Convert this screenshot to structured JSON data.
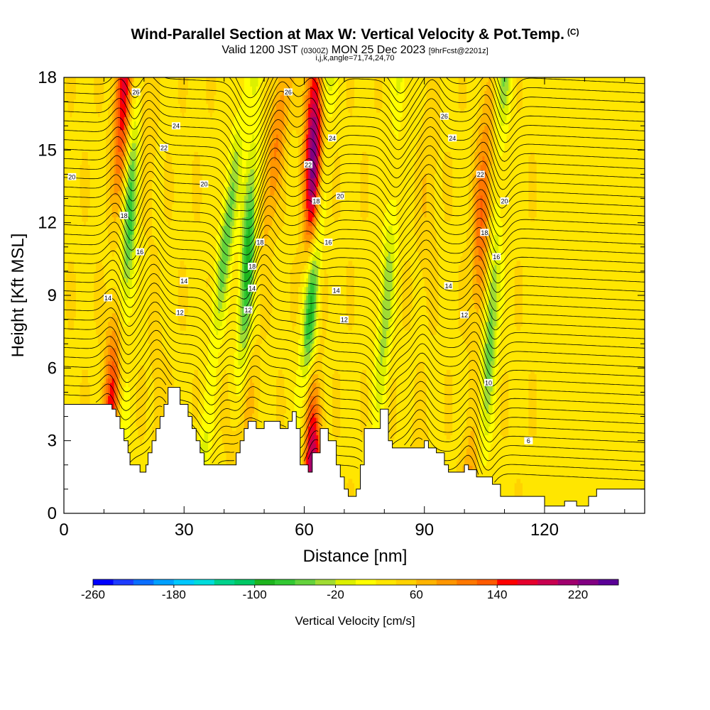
{
  "titles": {
    "main": "Wind-Parallel Section at Max W: Vertical Velocity & Pot.Temp.",
    "copyright": "(C)",
    "valid_prefix": "Valid 1200 JST",
    "valid_zulu": "(0300Z)",
    "valid_date": "MON 25 Dec 2023",
    "valid_fcst": "[9hrFcst@2201z]",
    "indices": "i,j,k,angle=71,74,24,70"
  },
  "chart_data": {
    "type": "heatmap",
    "xlabel": "Distance [nm]",
    "ylabel": "Height [Kft MSL]",
    "xlim": [
      0,
      145
    ],
    "ylim": [
      0,
      18
    ],
    "x_ticks": [
      0,
      30,
      60,
      90,
      120
    ],
    "y_ticks": [
      0,
      3,
      6,
      9,
      12,
      15,
      18
    ],
    "colorbar": {
      "label": "Vertical Velocity [cm/s]",
      "min": -260,
      "max": 260,
      "step": 20,
      "tick_labels": [
        "-260",
        "-180",
        "-100",
        "-20",
        "60",
        "140",
        "220"
      ],
      "tick_values": [
        -260,
        -180,
        -100,
        -20,
        60,
        140,
        220
      ],
      "colors": [
        "#0000ff",
        "#1e3cff",
        "#0a6eff",
        "#00a0ff",
        "#00c8ff",
        "#00dcdc",
        "#00d28c",
        "#00c864",
        "#1eb41e",
        "#32c832",
        "#64d23c",
        "#a0dc32",
        "#dcf000",
        "#ffff00",
        "#ffe600",
        "#ffd200",
        "#ffb400",
        "#ff9600",
        "#ff7800",
        "#ff5a00",
        "#ff0000",
        "#e6002d",
        "#c80050",
        "#a0006e",
        "#820082",
        "#5a0096"
      ]
    },
    "updraft_bands": [
      {
        "x_base": 11,
        "x_top": 15,
        "w_max": 160
      },
      {
        "x_base": 25,
        "x_top": 20,
        "w_max": 60
      },
      {
        "x_base": 42,
        "x_top": 55,
        "w_max": 100
      },
      {
        "x_base": 62,
        "x_top": 62.5,
        "w_max": 240
      },
      {
        "x_base": 88,
        "x_top": 92,
        "w_max": 60
      },
      {
        "x_base": 101,
        "x_top": 106,
        "w_max": 120
      }
    ],
    "downdraft_bands": [
      {
        "x_base": 13,
        "x_top": 18,
        "w_min": -100
      },
      {
        "x_base": 33,
        "x_top": 45,
        "w_min": -80
      },
      {
        "x_base": 43,
        "x_top": 48,
        "w_min": -120
      },
      {
        "x_base": 58,
        "x_top": 66,
        "w_min": -140
      },
      {
        "x_base": 77,
        "x_top": 84,
        "w_min": -60
      },
      {
        "x_base": 104,
        "x_top": 110,
        "w_min": -80
      }
    ],
    "theta_contours": {
      "levels": [
        6,
        8,
        10,
        12,
        14,
        16,
        18,
        20,
        22,
        24,
        26
      ],
      "labels": [
        {
          "text": "26",
          "x": 18,
          "y": 17.4
        },
        {
          "text": "26",
          "x": 56,
          "y": 17.4
        },
        {
          "text": "26",
          "x": 95,
          "y": 16.4
        },
        {
          "text": "24",
          "x": 28,
          "y": 16.0
        },
        {
          "text": "24",
          "x": 67,
          "y": 15.5
        },
        {
          "text": "24",
          "x": 97,
          "y": 15.5
        },
        {
          "text": "22",
          "x": 25,
          "y": 15.1
        },
        {
          "text": "22",
          "x": 61,
          "y": 14.4
        },
        {
          "text": "22",
          "x": 104,
          "y": 14.0
        },
        {
          "text": "20",
          "x": 2,
          "y": 13.9
        },
        {
          "text": "20",
          "x": 35,
          "y": 13.6
        },
        {
          "text": "20",
          "x": 69,
          "y": 13.1
        },
        {
          "text": "20",
          "x": 110,
          "y": 12.9
        },
        {
          "text": "18",
          "x": 15,
          "y": 12.3
        },
        {
          "text": "18",
          "x": 63,
          "y": 12.9
        },
        {
          "text": "18",
          "x": 105,
          "y": 11.6
        },
        {
          "text": "18",
          "x": 49,
          "y": 11.2
        },
        {
          "text": "18",
          "x": 47,
          "y": 10.2
        },
        {
          "text": "16",
          "x": 19,
          "y": 10.8
        },
        {
          "text": "16",
          "x": 66,
          "y": 11.2
        },
        {
          "text": "16",
          "x": 108,
          "y": 10.6
        },
        {
          "text": "14",
          "x": 30,
          "y": 9.6
        },
        {
          "text": "14",
          "x": 47,
          "y": 9.3
        },
        {
          "text": "14",
          "x": 68,
          "y": 9.2
        },
        {
          "text": "14",
          "x": 96,
          "y": 9.4
        },
        {
          "text": "14",
          "x": 11,
          "y": 8.9
        },
        {
          "text": "12",
          "x": 29,
          "y": 8.3
        },
        {
          "text": "12",
          "x": 46,
          "y": 8.4
        },
        {
          "text": "12",
          "x": 70,
          "y": 8.0
        },
        {
          "text": "12",
          "x": 100,
          "y": 8.2
        },
        {
          "text": "10",
          "x": 106,
          "y": 5.4
        },
        {
          "text": "6",
          "x": 116,
          "y": 3.0
        }
      ]
    },
    "terrain": [
      [
        0,
        4.5
      ],
      [
        12,
        4.5
      ],
      [
        12,
        4.3
      ],
      [
        13,
        4.3
      ],
      [
        13,
        4.0
      ],
      [
        14,
        4.0
      ],
      [
        14,
        3.5
      ],
      [
        15,
        3.5
      ],
      [
        15,
        3.0
      ],
      [
        16,
        3.0
      ],
      [
        16,
        2.5
      ],
      [
        16.5,
        2.5
      ],
      [
        16.5,
        2.0
      ],
      [
        19,
        2.0
      ],
      [
        19,
        1.7
      ],
      [
        20.5,
        1.7
      ],
      [
        20.5,
        2.0
      ],
      [
        21,
        2.0
      ],
      [
        21,
        2.5
      ],
      [
        22,
        2.5
      ],
      [
        22,
        3.0
      ],
      [
        23,
        3.0
      ],
      [
        23,
        3.5
      ],
      [
        24,
        3.5
      ],
      [
        24,
        4.0
      ],
      [
        25,
        4.0
      ],
      [
        25,
        4.5
      ],
      [
        26,
        4.5
      ],
      [
        26,
        5.2
      ],
      [
        29,
        5.2
      ],
      [
        29,
        4.5
      ],
      [
        31,
        4.5
      ],
      [
        31,
        4.0
      ],
      [
        32,
        4.0
      ],
      [
        32,
        3.5
      ],
      [
        33,
        3.5
      ],
      [
        33,
        3.0
      ],
      [
        34,
        3.0
      ],
      [
        34,
        2.5
      ],
      [
        35,
        2.5
      ],
      [
        35,
        2.0
      ],
      [
        43,
        2.0
      ],
      [
        43,
        2.5
      ],
      [
        44,
        2.5
      ],
      [
        44,
        3.0
      ],
      [
        45,
        3.0
      ],
      [
        45,
        3.5
      ],
      [
        46,
        3.5
      ],
      [
        46,
        3.8
      ],
      [
        48,
        3.8
      ],
      [
        48,
        3.5
      ],
      [
        50,
        3.5
      ],
      [
        50,
        3.8
      ],
      [
        54,
        3.8
      ],
      [
        54,
        3.5
      ],
      [
        56,
        3.5
      ],
      [
        56,
        3.8
      ],
      [
        57,
        3.8
      ],
      [
        57,
        4.2
      ],
      [
        58,
        4.2
      ],
      [
        58,
        3.5
      ],
      [
        59,
        3.5
      ],
      [
        59,
        2.0
      ],
      [
        61,
        2.0
      ],
      [
        61,
        1.7
      ],
      [
        62,
        1.7
      ],
      [
        62,
        2.5
      ],
      [
        64,
        2.5
      ],
      [
        64,
        3.5
      ],
      [
        66,
        3.5
      ],
      [
        66,
        3.0
      ],
      [
        68,
        3.0
      ],
      [
        68,
        2.0
      ],
      [
        69,
        2.0
      ],
      [
        69,
        1.5
      ],
      [
        70,
        1.5
      ],
      [
        70,
        1.0
      ],
      [
        71,
        1.0
      ],
      [
        71,
        0.7
      ],
      [
        73,
        0.7
      ],
      [
        73,
        1.0
      ],
      [
        74,
        1.0
      ],
      [
        74,
        2.0
      ],
      [
        75,
        2.0
      ],
      [
        75,
        3.5
      ],
      [
        79,
        3.5
      ],
      [
        79,
        4.3
      ],
      [
        81,
        4.3
      ],
      [
        81,
        3.0
      ],
      [
        82,
        3.0
      ],
      [
        82,
        2.7
      ],
      [
        90,
        2.7
      ],
      [
        90,
        3.0
      ],
      [
        91,
        3.0
      ],
      [
        91,
        2.7
      ],
      [
        93,
        2.7
      ],
      [
        93,
        2.5
      ],
      [
        95,
        2.5
      ],
      [
        95,
        2.0
      ],
      [
        96,
        2.0
      ],
      [
        96,
        1.7
      ],
      [
        100,
        1.7
      ],
      [
        100,
        2.0
      ],
      [
        101,
        2.0
      ],
      [
        101,
        1.8
      ],
      [
        103,
        1.8
      ],
      [
        103,
        1.5
      ],
      [
        107,
        1.5
      ],
      [
        107,
        1.2
      ],
      [
        109,
        1.2
      ],
      [
        109,
        0.7
      ],
      [
        120,
        0.7
      ],
      [
        120,
        0.3
      ],
      [
        125,
        0.3
      ],
      [
        125,
        0.5
      ],
      [
        128,
        0.5
      ],
      [
        128,
        0.3
      ],
      [
        131,
        0.3
      ],
      [
        131,
        0.7
      ],
      [
        133,
        0.7
      ],
      [
        133,
        1.0
      ],
      [
        145,
        1.0
      ]
    ]
  }
}
